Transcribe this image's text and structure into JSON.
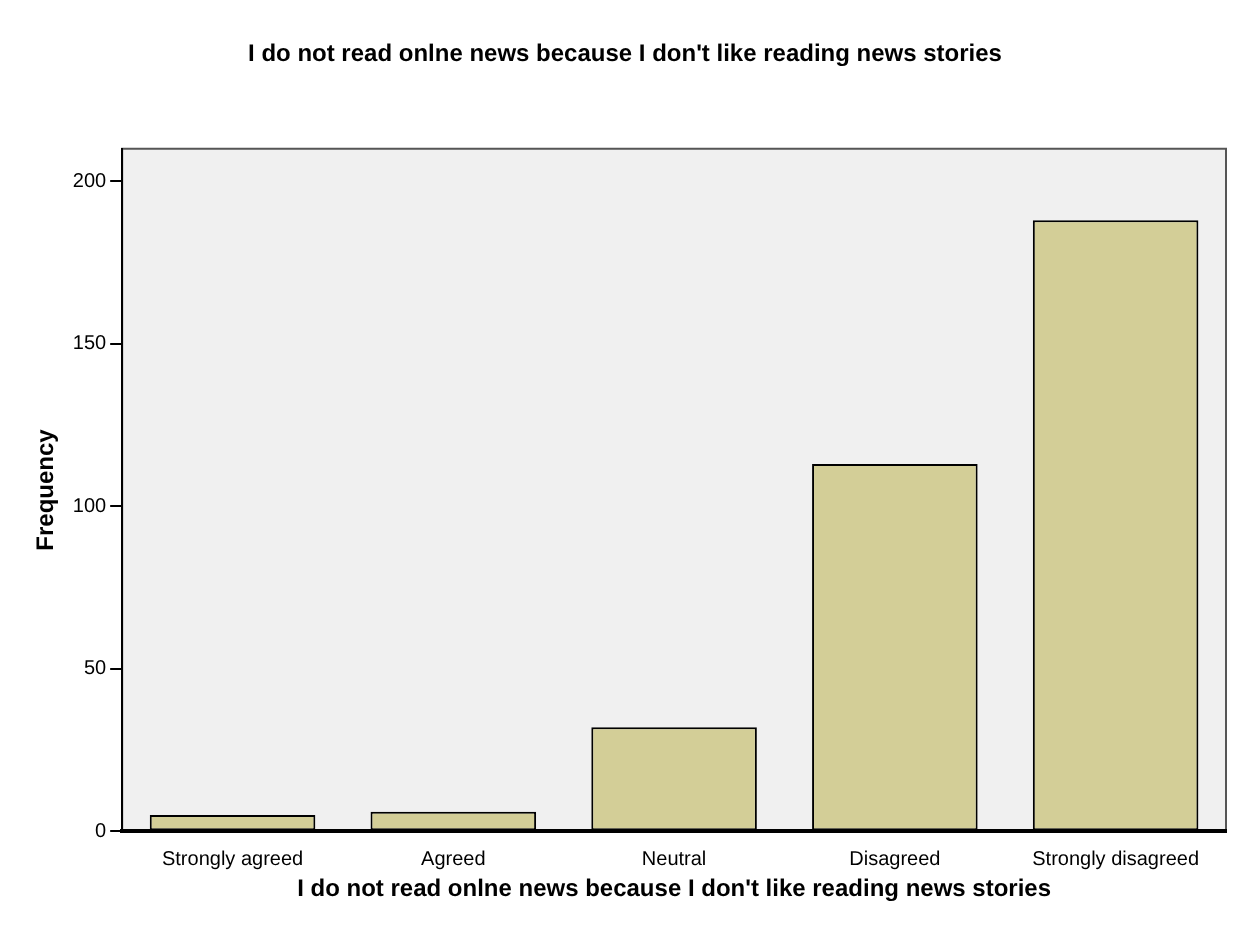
{
  "chart_data": {
    "type": "bar",
    "title": "I do not read onlne news because I don't like reading news stories",
    "xlabel": "I do not read onlne news because I don't like reading news stories",
    "ylabel": "Frequency",
    "categories": [
      "Strongly agreed",
      "Agreed",
      "Neutral",
      "Disagreed",
      "Strongly disagreed"
    ],
    "values": [
      5,
      6,
      32,
      113,
      188
    ],
    "color": "#d3ce97",
    "ylim": [
      0,
      210
    ],
    "yticks": [
      0,
      50,
      100,
      150,
      200
    ],
    "grid": false,
    "legend": false
  }
}
